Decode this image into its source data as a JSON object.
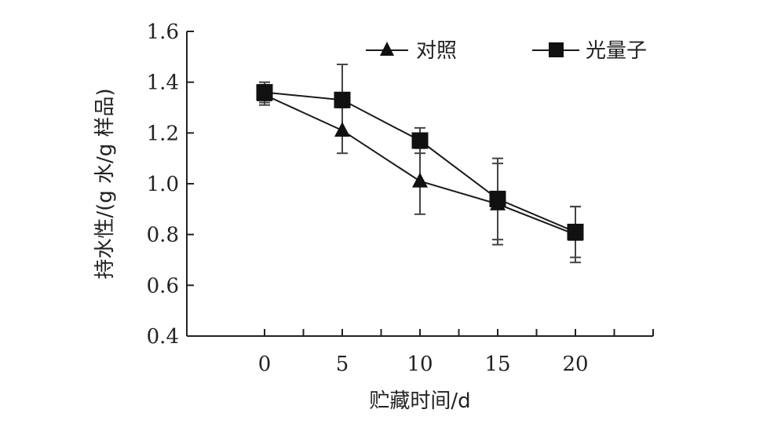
{
  "chart_data": {
    "type": "line",
    "title": "",
    "xlabel": "贮藏时间/d",
    "ylabel": "持水性/(g 水/g 样品)",
    "x": [
      0,
      5,
      10,
      15,
      20
    ],
    "xlim": [
      -5,
      25
    ],
    "ylim": [
      0.4,
      1.6
    ],
    "xticks": [
      "0",
      "5",
      "10",
      "15",
      "20"
    ],
    "yticks": [
      "0.4",
      "0.6",
      "0.8",
      "1.0",
      "1.2",
      "1.4",
      "1.6"
    ],
    "grid": false,
    "legend_position": "top-right",
    "series": [
      {
        "name": "对照",
        "marker": "triangle",
        "values": [
          1.35,
          1.21,
          1.01,
          0.92,
          0.8
        ],
        "error": [
          0.04,
          0.09,
          0.13,
          0.16,
          0.11
        ]
      },
      {
        "name": "光量子",
        "marker": "square",
        "values": [
          1.36,
          1.33,
          1.17,
          0.94,
          0.81
        ],
        "error": [
          0.04,
          0.14,
          0.05,
          0.16,
          0.1
        ]
      }
    ],
    "colors": {
      "line": "#1a1a1a",
      "marker": "#111111"
    }
  }
}
